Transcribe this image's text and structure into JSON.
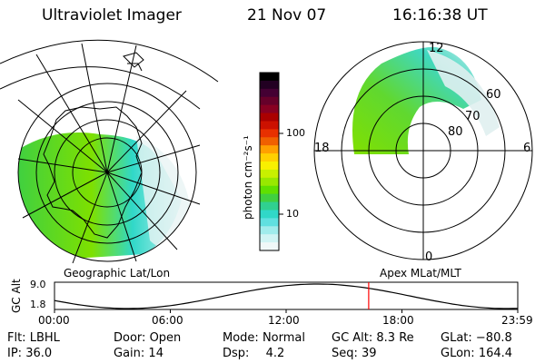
{
  "header": {
    "instrument": "Ultraviolet Imager",
    "date": "21 Nov 07",
    "time": "16:16:38 UT"
  },
  "left_panel": {
    "caption": "Geographic Lat/Lon"
  },
  "right_panel": {
    "caption": "Apex MLat/MLT",
    "lat_labels": [
      "80",
      "70",
      "60"
    ],
    "mlt_labels": {
      "top": "12",
      "left": "18",
      "right": "6",
      "bottom": "0"
    }
  },
  "colorbar": {
    "unit_label": "photon cm⁻²s⁻¹",
    "tick_labels": [
      "100",
      "10"
    ],
    "colors": [
      "#000000",
      "#220022",
      "#440033",
      "#66002a",
      "#880022",
      "#aa0000",
      "#cc1100",
      "#e83000",
      "#f06000",
      "#ffa000",
      "#ffd000",
      "#f8f000",
      "#c8f000",
      "#98e800",
      "#60e000",
      "#40d040",
      "#30d090",
      "#30d8c8",
      "#60e0e0",
      "#a0ecec",
      "#d0f4f4",
      "#f0f8f8"
    ]
  },
  "altitude_plot": {
    "ylabel": "GC Alt",
    "y_ticks": [
      "9.0",
      "1.8"
    ],
    "x_ticks": [
      "00:00",
      "06:00",
      "12:00",
      "18:00",
      "23:59"
    ],
    "marker_hour": 16.28,
    "marker_color": "#ff0000"
  },
  "status": [
    {
      "label": "Flt:",
      "value": "LBHL"
    },
    {
      "label": "Door:",
      "value": "Open"
    },
    {
      "label": "Mode:",
      "value": "Normal"
    },
    {
      "label": "GC Alt:",
      "value": "8.3 Re"
    },
    {
      "label": "GLat:",
      "value": "−80.8"
    },
    {
      "label": "IP:",
      "value": "36.0"
    },
    {
      "label": "Gain:",
      "value": "14"
    },
    {
      "label": "Dsp:",
      "value": "4.2"
    },
    {
      "label": "Seq:",
      "value": "39"
    },
    {
      "label": "GLon:",
      "value": "164.4"
    }
  ]
}
